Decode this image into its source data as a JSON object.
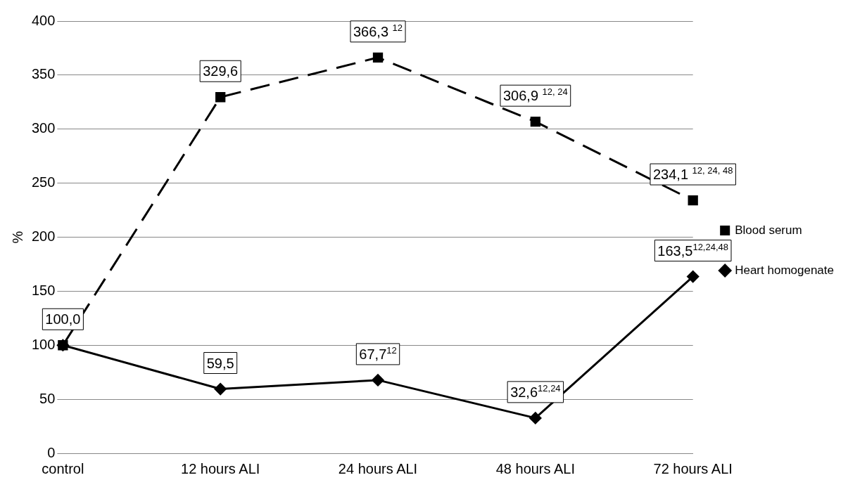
{
  "chart_data": {
    "type": "line",
    "ylabel": "%",
    "categories": [
      "control",
      "12 hours ALI",
      "24 hours ALI",
      "48 hours ALI",
      "72 hours ALI"
    ],
    "series": [
      {
        "name": "Blood serum",
        "color": "#000000",
        "marker": "square",
        "line_style": "dashed",
        "values": [
          100.0,
          329.6,
          366.3,
          306.9,
          234.1
        ],
        "value_labels": [
          "100,0",
          "329,6",
          "366,3 $^{12}$",
          "306,9 $^{12, 24}$",
          "234,1 $^{12, 24, 48}$"
        ]
      },
      {
        "name": "Heart homogenate",
        "color": "#000000",
        "marker": "diamond",
        "line_style": "solid",
        "values": [
          100.0,
          59.5,
          67.7,
          32.6,
          163.5
        ],
        "value_labels": [
          null,
          "59,5",
          "67,7$^{12}$",
          "32,6$^{12,24}$",
          "163,5$^{12,24,48}$"
        ]
      }
    ],
    "ylim": [
      0,
      400
    ],
    "yticks": [
      0,
      50,
      100,
      150,
      200,
      250,
      300,
      350,
      400
    ],
    "grid": "y",
    "legend": "right"
  }
}
